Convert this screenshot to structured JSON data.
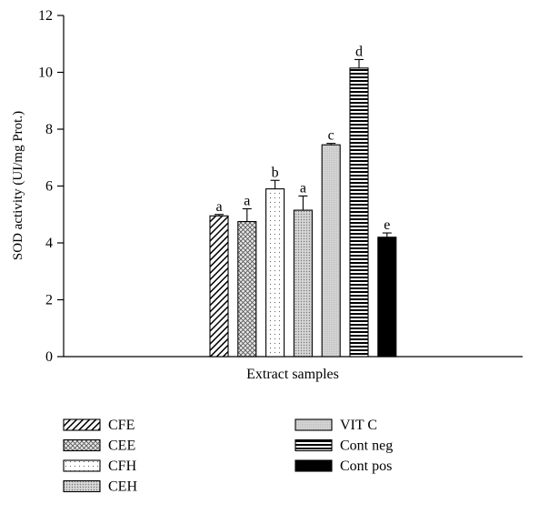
{
  "chart_data": {
    "type": "bar",
    "ylabel": "SOD activity (UI/mg Prot.)",
    "xlabel": "Extract samples",
    "ylim": [
      0,
      12
    ],
    "yticks": [
      0,
      2,
      4,
      6,
      8,
      10,
      12
    ],
    "grid": false,
    "legend_position": "bottom",
    "series": [
      {
        "name": "CFE",
        "value": 4.95,
        "error": 0.05,
        "letter": "a",
        "pattern": "diagonal-hatch",
        "color": "#000000"
      },
      {
        "name": "CEE",
        "value": 4.75,
        "error": 0.45,
        "letter": "a",
        "pattern": "crosshatch",
        "color": "#cfcfcf"
      },
      {
        "name": "CFH",
        "value": 5.9,
        "error": 0.3,
        "letter": "b",
        "pattern": "sparse-dots",
        "color": "#ffffff"
      },
      {
        "name": "CEH",
        "value": 5.15,
        "error": 0.5,
        "letter": "a",
        "pattern": "dense-dots",
        "color": "#bdbdbd"
      },
      {
        "name": "VIT C",
        "value": 7.45,
        "error": 0.05,
        "letter": "c",
        "pattern": "fine-grey",
        "color": "#d9d9d9"
      },
      {
        "name": "Cont neg",
        "value": 10.15,
        "error": 0.3,
        "letter": "d",
        "pattern": "horizontal-stripes",
        "color": "#000000"
      },
      {
        "name": "Cont pos",
        "value": 4.2,
        "error": 0.15,
        "letter": "e",
        "pattern": "solid",
        "color": "#000000"
      }
    ]
  }
}
